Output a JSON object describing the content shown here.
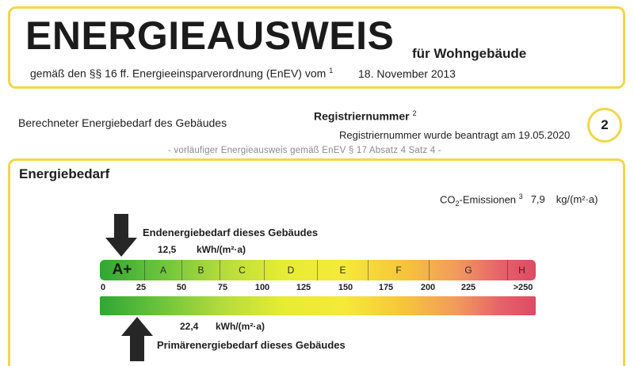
{
  "header": {
    "title": "ENERGIEAUSWEIS",
    "subtitle": "für Wohngebäude",
    "regulation": "gemäß den §§ 16 ff. Energieeinsparverordnung (EnEV) vom",
    "regulation_footnote": "1",
    "date": "18. November 2013"
  },
  "info": {
    "building_demand_label": "Berechneter Energiebedarf des Gebäudes",
    "registration_label": "Registriernummer",
    "registration_footnote": "2",
    "registration_status": "Registriernummer wurde beantragt am 19.05.2020",
    "page_number": "2",
    "provisional_note": "- vorläufiger Energieausweis gemäß EnEV § 17 Absatz 4 Satz 4 -"
  },
  "energy": {
    "heading": "Energiebedarf",
    "co2_prefix": "CO",
    "co2_sub": "2",
    "co2_suffix": "-Emissionen",
    "co2_footnote": "3",
    "co2_value": "7,9",
    "co2_unit": "kg/(m²·a)",
    "end_energy_label": "Endenergiebedarf dieses Gebäudes",
    "end_energy_value": "12,5",
    "end_energy_unit": "kWh/(m²·a)",
    "primary_energy_value": "22,4",
    "primary_energy_unit": "kWh/(m²·a)",
    "primary_energy_label": "Primärenergiebedarf dieses Gebäudes"
  },
  "scale": {
    "classes": [
      "A+",
      "A",
      "B",
      "C",
      "D",
      "E",
      "F",
      "G",
      "H"
    ],
    "ticks": [
      "0",
      "25",
      "50",
      "75",
      "100",
      "125",
      "150",
      "175",
      "200",
      "225",
      ">250"
    ]
  },
  "colors": {
    "frame": "#f2d64a",
    "scale_green": "#2fa633",
    "scale_yellow": "#f6e93a",
    "scale_red": "#de4a63"
  }
}
